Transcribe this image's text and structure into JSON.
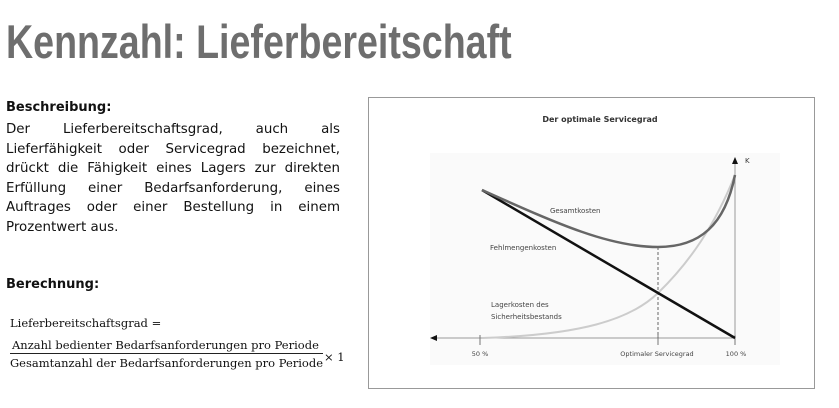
{
  "title": "Kennzahl: Lieferbereitschaft",
  "description": {
    "heading": "Beschreibung:",
    "text": "Der Lieferbereitschaftsgrad, auch als Lieferfähigkeit oder Servicegrad bezeichnet, drückt die Fähigkeit eines Lagers zur direkten Erfüllung einer Bedarfsanforderung, eines Auftrages oder einer Bestellung in einem Prozentwert aus."
  },
  "calculation": {
    "heading": "Berechnung:",
    "lhs": "Lieferbereitschaftsgrad =",
    "numerator": "Anzahl bedienter Bedarfsanforderungen pro Periode",
    "denominator": "Gesamtanzahl der Bedarfsanforderungen pro Periode",
    "multiplier": "× 1"
  },
  "diagram": {
    "title": "Der optimale Servicegrad",
    "y_axis": "K",
    "labels": {
      "total": "Gesamtkosten",
      "shortage": "Fehlmengenkosten",
      "storage1": "Lagerkosten des",
      "storage2": "Sicherheitsbestands"
    },
    "ticks": [
      "50 %",
      "Optimaler Servicegrad",
      "100 %"
    ]
  }
}
